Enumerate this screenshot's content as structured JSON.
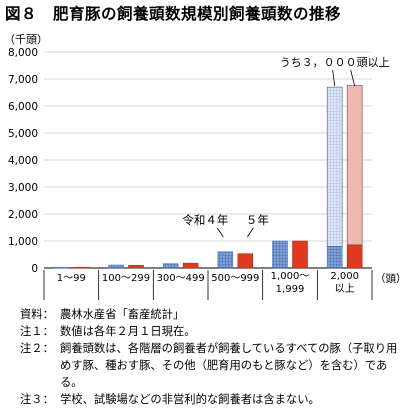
{
  "title": "図８　肥育豚の飼養頭数規模別飼養頭数の推移",
  "chart_data": {
    "type": "bar",
    "ylabel": "（千頭）",
    "xlabel": "（頭）",
    "ylim": [
      0,
      8000
    ],
    "yticks": [
      0,
      1000,
      2000,
      3000,
      4000,
      5000,
      6000,
      7000,
      8000
    ],
    "ytick_labels": [
      "0",
      "1,000",
      "2,000",
      "3,000",
      "4,000",
      "5,000",
      "6,000",
      "7,000",
      "8,000"
    ],
    "categories": [
      {
        "lines": [
          "1〜99"
        ]
      },
      {
        "lines": [
          "100〜299"
        ]
      },
      {
        "lines": [
          "300〜499"
        ]
      },
      {
        "lines": [
          "500〜999"
        ]
      },
      {
        "lines": [
          "1,000〜",
          "1,999"
        ]
      },
      {
        "lines": [
          "2,000",
          "以上"
        ]
      }
    ],
    "series": [
      {
        "name": "令和4年",
        "values": [
          30,
          110,
          160,
          600,
          1000,
          6700
        ],
        "color": "#7f9fd6"
      },
      {
        "name": "5年",
        "values": [
          30,
          100,
          180,
          530,
          1000,
          6760
        ],
        "color": "#e03a1e"
      }
    ],
    "stacked_detail": {
      "label": "うち３，０００頭以上",
      "values": [
        5900,
        5900
      ],
      "colors": [
        "#dde6f6",
        "#eeb8b1"
      ]
    },
    "annotations": [
      {
        "text": "令和４年",
        "series": 0
      },
      {
        "text": "５年",
        "series": 1
      }
    ]
  },
  "notes": [
    {
      "key": "資料：",
      "text": "農林水産省「畜産統計」"
    },
    {
      "key": "注１：",
      "text": "数値は各年２月１日現在。"
    },
    {
      "key": "注２：",
      "text": "飼養頭数は、各階層の飼養者が飼養しているすべての豚（子取り用めす豚、種おす豚、その他（肥育用のもと豚など）を含む）である。"
    },
    {
      "key": "注３：",
      "text": "学校、試験場などの非営利的な飼養者は含まない。"
    }
  ]
}
